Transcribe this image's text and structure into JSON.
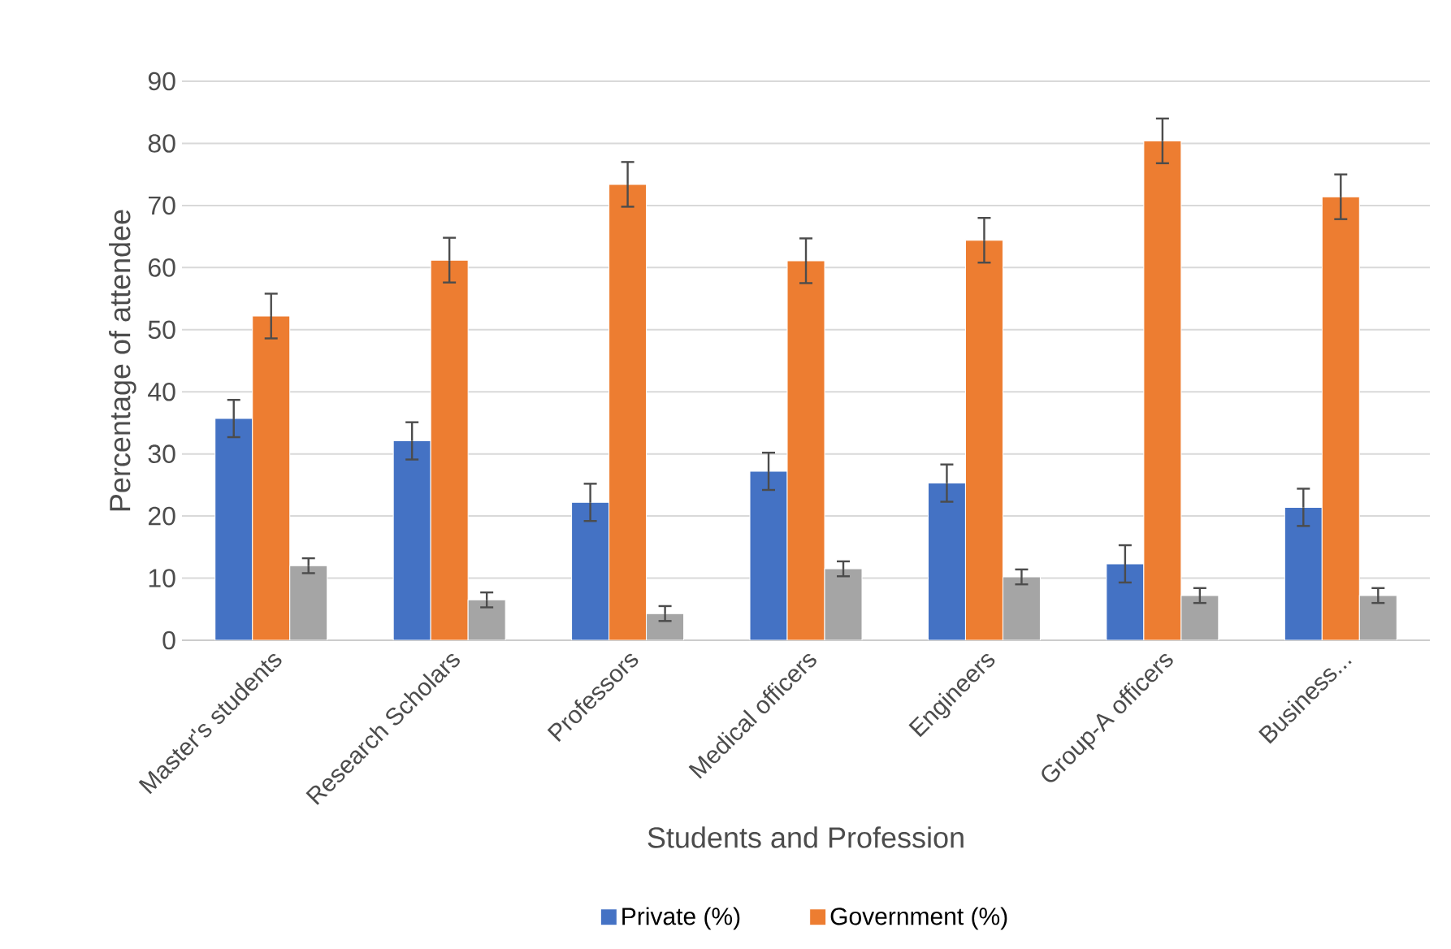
{
  "chart_data": {
    "type": "bar",
    "xlabel": "Students and Profession",
    "ylabel": "Percentage of attendee",
    "categories": [
      "Master's students",
      "Research Scholars",
      "Professors",
      "Medical officers",
      "Engineers",
      "Group-A officers",
      "Business..."
    ],
    "series": [
      {
        "name": "Private (%)",
        "color": "#4472c4",
        "values": [
          35.7,
          32.1,
          22.2,
          27.2,
          25.3,
          12.3,
          21.4
        ],
        "errors": [
          3,
          3,
          3,
          3,
          3,
          3,
          3
        ]
      },
      {
        "name": "Government (%)",
        "color": "#ed7d31",
        "values": [
          52.2,
          61.2,
          73.4,
          61.1,
          64.4,
          80.4,
          71.4
        ],
        "errors": [
          3.6,
          3.6,
          3.6,
          3.6,
          3.6,
          3.6,
          3.6
        ]
      },
      {
        "color": "#a5a5a5",
        "values": [
          12.0,
          6.5,
          4.3,
          11.5,
          10.2,
          7.2,
          7.2
        ],
        "errors": [
          1.2,
          1.2,
          1.2,
          1.2,
          1.2,
          1.2,
          1.2
        ]
      }
    ],
    "ylim": [
      0,
      90
    ],
    "yticks": [
      0,
      10,
      20,
      30,
      40,
      50,
      60,
      70,
      80,
      90
    ],
    "grid": "y",
    "legend": "bottom"
  }
}
